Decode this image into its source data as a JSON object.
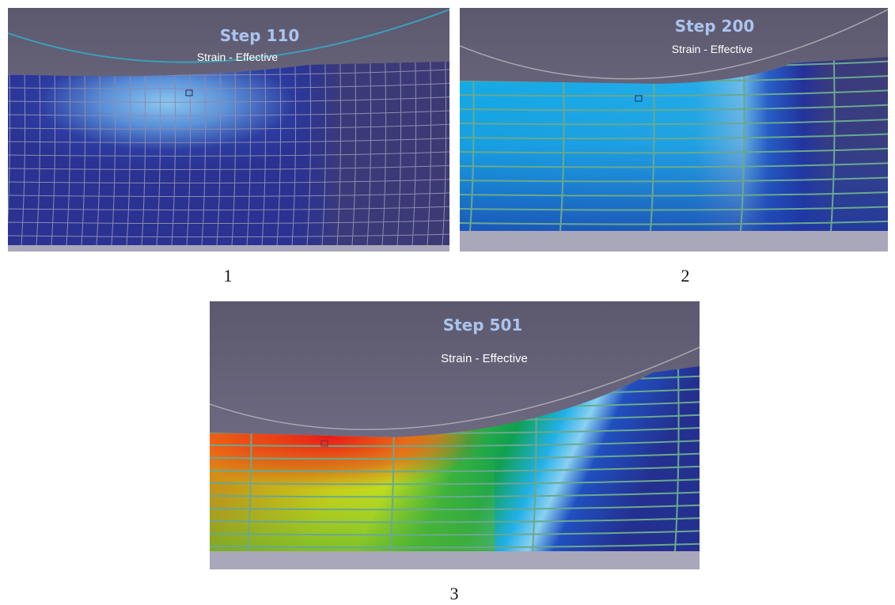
{
  "panels": [
    {
      "title": "Step 110",
      "subtitle": "Strain - Effective",
      "caption": "1"
    },
    {
      "title": "Step 200",
      "subtitle": "Strain - Effective",
      "caption": "2"
    },
    {
      "title": "Step 501",
      "subtitle": "Strain - Effective",
      "caption": "3"
    }
  ]
}
